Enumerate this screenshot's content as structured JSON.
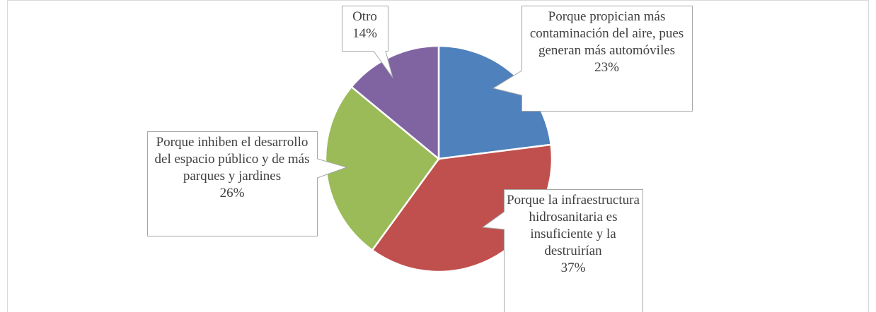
{
  "chart_data": {
    "type": "pie",
    "categories": [
      "Porque propician más contaminación del aire, pues generan más automóviles",
      "Porque la infraestructura hidrosanitaria es insuficiente y la destruirían",
      "Porque inhiben el desarrollo del espacio público y de más parques y jardines",
      "Otro"
    ],
    "values": [
      23,
      37,
      26,
      14
    ],
    "value_labels": [
      "23%",
      "37%",
      "26%",
      "14%"
    ],
    "colors": [
      "#4f81bd",
      "#c0504d",
      "#9bbb59",
      "#8064a2"
    ]
  }
}
